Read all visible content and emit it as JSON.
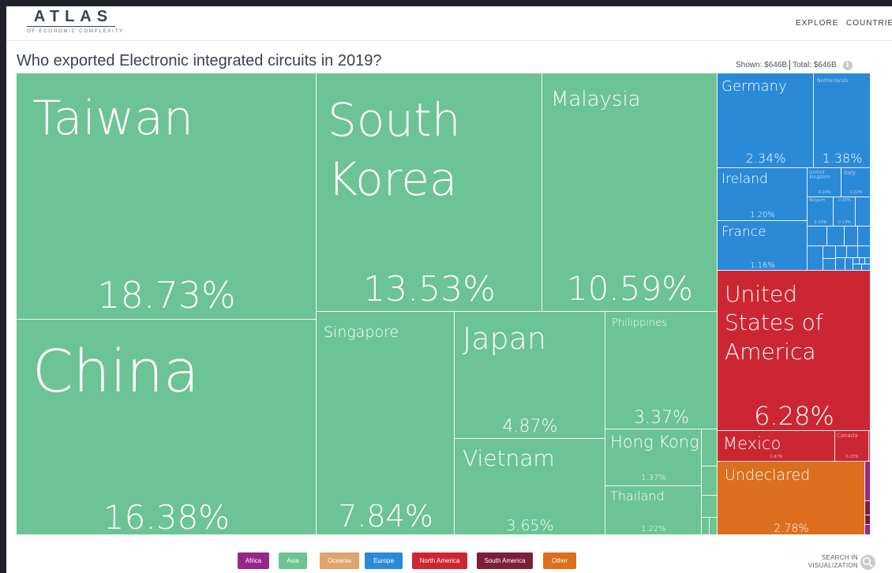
{
  "header": {
    "logo_title": "ATLAS",
    "logo_subtitle": "OF ECONOMIC COMPLEXITY",
    "nav": {
      "explore": "EXPLORE",
      "countries": "COUNTRIES"
    }
  },
  "page_title": "Who exported Electronic integrated circuits in 2019?",
  "totals": {
    "shown_label": "Shown:",
    "shown_value": "$646B",
    "total_label": "Total:",
    "total_value": "$646B",
    "info_icon": "i"
  },
  "treemap": {
    "cells": [
      {
        "id": "taiwan",
        "name": "Taiwan",
        "share": "18.73%",
        "region": "Asia"
      },
      {
        "id": "china",
        "name": "China",
        "share": "16.38%",
        "region": "Asia"
      },
      {
        "id": "south-korea",
        "name": "South Korea",
        "share": "13.53%",
        "region": "Asia"
      },
      {
        "id": "malaysia",
        "name": "Malaysia",
        "share": "10.59%",
        "region": "Asia"
      },
      {
        "id": "singapore",
        "name": "Singapore",
        "share": "7.84%",
        "region": "Asia"
      },
      {
        "id": "japan",
        "name": "Japan",
        "share": "4.87%",
        "region": "Asia"
      },
      {
        "id": "philippines",
        "name": "Philippines",
        "share": "3.37%",
        "region": "Asia"
      },
      {
        "id": "vietnam",
        "name": "Vietnam",
        "share": "3.65%",
        "region": "Asia"
      },
      {
        "id": "hong-kong",
        "name": "Hong Kong",
        "share": "1.37%",
        "region": "Asia"
      },
      {
        "id": "thailand",
        "name": "Thailand",
        "share": "1.22%",
        "region": "Asia"
      },
      {
        "id": "germany",
        "name": "Germany",
        "share": "2.34%",
        "region": "Europe"
      },
      {
        "id": "netherlands",
        "name": "Netherlands",
        "share": "1.38%",
        "region": "Europe"
      },
      {
        "id": "ireland",
        "name": "Ireland",
        "share": "1.20%",
        "region": "Europe"
      },
      {
        "id": "united-kingdom",
        "name": "United Kingdom",
        "share": "0.24%",
        "region": "Europe"
      },
      {
        "id": "italy",
        "name": "Italy",
        "share": "0.22%",
        "region": "Europe"
      },
      {
        "id": "belgium",
        "name": "Belgium",
        "share": "0.20%",
        "region": "Europe"
      },
      {
        "id": "europe-small-a",
        "name": "",
        "share": "0.16%",
        "region": "Europe"
      },
      {
        "id": "europe-small-b",
        "name": "",
        "share": "0.13%",
        "region": "Europe"
      },
      {
        "id": "france",
        "name": "France",
        "share": "1.16%",
        "region": "Europe"
      },
      {
        "id": "usa",
        "name": "United States of America",
        "share": "6.28%",
        "region": "North America"
      },
      {
        "id": "mexico",
        "name": "Mexico",
        "share": "0.87%",
        "region": "North America"
      },
      {
        "id": "canada",
        "name": "Canada",
        "share": "0.25%",
        "region": "North America"
      },
      {
        "id": "undeclared",
        "name": "Undeclared",
        "share": "2.78%",
        "region": "Other"
      }
    ]
  },
  "legend": [
    {
      "label": "Africa",
      "color": "#95278b"
    },
    {
      "label": "Asia",
      "color": "#6cc393"
    },
    {
      "label": "Oceania",
      "color": "#dfa36b"
    },
    {
      "label": "Europe",
      "color": "#2b8ad8"
    },
    {
      "label": "North America",
      "color": "#cd2633"
    },
    {
      "label": "South America",
      "color": "#7b1f3b"
    },
    {
      "label": "Other",
      "color": "#dc6f1d"
    }
  ],
  "search_visualization": {
    "line1": "SEARCH IN",
    "line2": "VISUALIZATION",
    "icon": "search-icon"
  }
}
